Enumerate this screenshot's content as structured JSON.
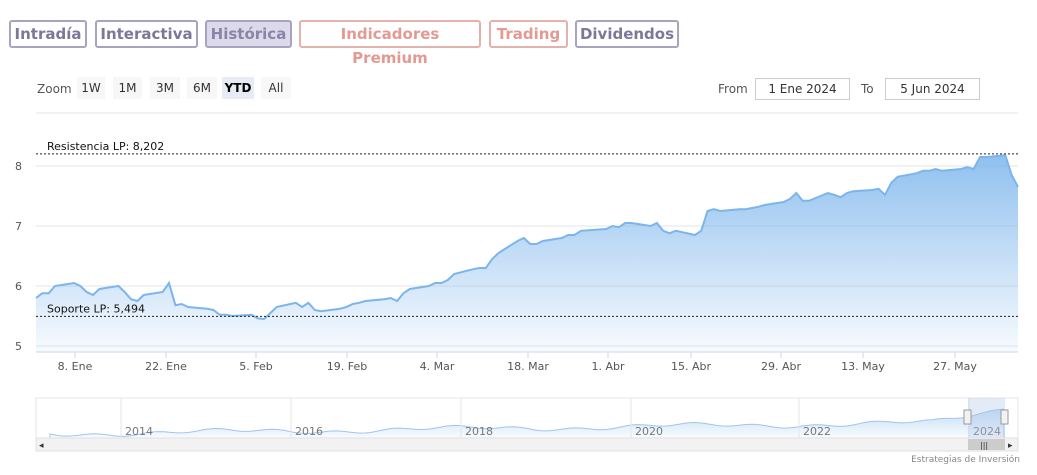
{
  "tabs": [
    {
      "label": "Intradía"
    },
    {
      "label": "Interactiva"
    },
    {
      "label": "Histórica"
    },
    {
      "label": "Indicadores Premium"
    },
    {
      "label": "Trading"
    },
    {
      "label": "Dividendos"
    }
  ],
  "toolbar": {
    "zoom_label": "Zoom",
    "zoom_buttons": [
      "1W",
      "1M",
      "3M",
      "6M",
      "YTD",
      "All"
    ],
    "selected_zoom": "YTD",
    "from_label": "From",
    "from_value": "1 Ene 2024",
    "to_label": "To",
    "to_value": "5 Jun 2024"
  },
  "colors": {
    "line": "#7cb5ec",
    "fill_top": "#7cb5ec",
    "fill_bottom": "#ffffff",
    "tab_active_bg": "#dcd9ea",
    "tab_border": "#a9a3bf",
    "tab_salmon": "#e29a92"
  },
  "chart_data": {
    "type": "area",
    "ylim": [
      5,
      8.3
    ],
    "yticks": [
      "5",
      "6",
      "7",
      "8"
    ],
    "xlabels": [
      "8. Ene",
      "22. Ene",
      "5. Feb",
      "19. Feb",
      "4. Mar",
      "18. Mar",
      "1. Abr",
      "15. Abr",
      "29. Abr",
      "13. May",
      "27. May"
    ],
    "annotations": [
      {
        "label": "Resistencia LP: 8,202",
        "value": 8.202
      },
      {
        "label": "Soporte LP: 5,494",
        "value": 5.494
      }
    ],
    "series": [
      {
        "x": [
          "2024-01-02",
          "2024-01-03",
          "2024-01-04",
          "2024-01-05",
          "2024-01-08",
          "2024-01-09",
          "2024-01-10",
          "2024-01-11",
          "2024-01-12",
          "2024-01-15",
          "2024-01-16",
          "2024-01-17",
          "2024-01-18",
          "2024-01-19",
          "2024-01-22",
          "2024-01-23",
          "2024-01-24",
          "2024-01-25",
          "2024-01-26",
          "2024-01-29",
          "2024-01-30",
          "2024-01-31",
          "2024-02-01",
          "2024-02-02",
          "2024-02-05",
          "2024-02-06",
          "2024-02-07",
          "2024-02-08",
          "2024-02-09",
          "2024-02-12",
          "2024-02-13",
          "2024-02-14",
          "2024-02-15",
          "2024-02-16",
          "2024-02-19",
          "2024-02-20",
          "2024-02-21",
          "2024-02-22",
          "2024-02-23",
          "2024-02-26",
          "2024-02-27",
          "2024-02-28",
          "2024-02-29",
          "2024-03-01",
          "2024-03-04",
          "2024-03-05",
          "2024-03-06",
          "2024-03-07",
          "2024-03-08",
          "2024-03-11",
          "2024-03-12",
          "2024-03-13",
          "2024-03-14",
          "2024-03-15",
          "2024-03-18",
          "2024-03-19",
          "2024-03-20",
          "2024-03-21",
          "2024-03-22",
          "2024-03-25",
          "2024-03-26",
          "2024-03-27",
          "2024-03-28",
          "2024-04-01",
          "2024-04-02",
          "2024-04-03",
          "2024-04-04",
          "2024-04-05",
          "2024-04-08",
          "2024-04-09",
          "2024-04-10",
          "2024-04-11",
          "2024-04-12",
          "2024-04-15",
          "2024-04-16",
          "2024-04-17",
          "2024-04-18",
          "2024-04-19",
          "2024-04-22",
          "2024-04-23",
          "2024-04-24",
          "2024-04-25",
          "2024-04-26",
          "2024-04-29",
          "2024-04-30",
          "2024-05-01",
          "2024-05-02",
          "2024-05-03",
          "2024-05-06",
          "2024-05-07",
          "2024-05-08",
          "2024-05-09",
          "2024-05-10",
          "2024-05-13",
          "2024-05-14",
          "2024-05-15",
          "2024-05-16",
          "2024-05-17",
          "2024-05-20",
          "2024-05-21",
          "2024-05-22",
          "2024-05-23",
          "2024-05-24",
          "2024-05-27",
          "2024-05-28",
          "2024-05-29",
          "2024-05-30",
          "2024-05-31",
          "2024-06-03",
          "2024-06-04",
          "2024-06-05"
        ],
        "y": [
          5.8,
          5.88,
          5.88,
          6.0,
          6.05,
          6.0,
          5.9,
          5.85,
          5.95,
          6.0,
          5.9,
          5.78,
          5.75,
          5.85,
          5.9,
          6.05,
          5.68,
          5.7,
          5.65,
          5.62,
          5.6,
          5.52,
          5.52,
          5.5,
          5.52,
          5.46,
          5.45,
          5.55,
          5.65,
          5.72,
          5.65,
          5.72,
          5.6,
          5.58,
          5.62,
          5.65,
          5.7,
          5.72,
          5.75,
          5.78,
          5.8,
          5.75,
          5.88,
          5.95,
          6.0,
          6.05,
          6.05,
          6.1,
          6.2,
          6.28,
          6.3,
          6.3,
          6.45,
          6.55,
          6.75,
          6.8,
          6.7,
          6.7,
          6.75,
          6.8,
          6.85,
          6.85,
          6.92,
          6.95,
          7.0,
          6.98,
          7.05,
          7.05,
          7.0,
          7.05,
          6.92,
          6.88,
          6.92,
          6.85,
          6.92,
          7.25,
          7.28,
          7.25,
          7.28,
          7.28,
          7.3,
          7.32,
          7.35,
          7.4,
          7.45,
          7.55,
          7.42,
          7.42,
          7.55,
          7.52,
          7.48,
          7.55,
          7.58,
          7.6,
          7.62,
          7.52,
          7.72,
          7.82,
          7.88,
          7.92,
          7.92,
          7.95,
          7.92,
          7.95,
          7.98,
          7.95,
          8.15,
          8.15,
          8.18,
          7.85,
          7.65
        ]
      }
    ]
  },
  "navigator": {
    "year_labels": [
      "2014",
      "2016",
      "2018",
      "2020",
      "2022",
      "2024"
    ]
  },
  "credits": "Estrategias de Inversión"
}
